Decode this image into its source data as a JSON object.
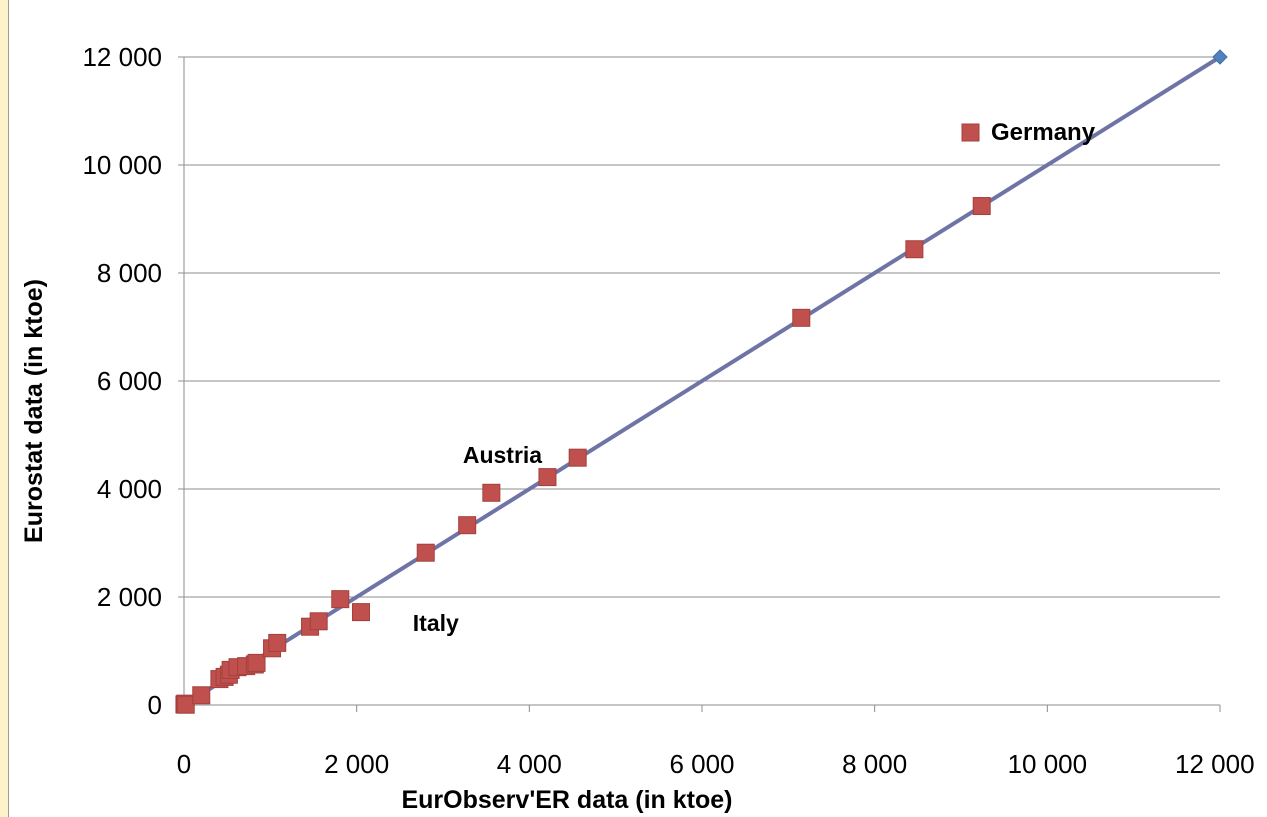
{
  "chart_data": {
    "type": "scatter",
    "title": "",
    "xlabel": "EurObserv'ER data (in ktoe)",
    "ylabel": "Eurostat data (in ktoe)",
    "xlim": [
      0,
      12000
    ],
    "ylim": [
      0,
      12000
    ],
    "x_ticks": [
      0,
      2000,
      4000,
      6000,
      8000,
      10000,
      12000
    ],
    "y_ticks": [
      0,
      2000,
      4000,
      6000,
      8000,
      10000,
      12000
    ],
    "x_tick_labels": [
      "0",
      "2 000",
      "4 000",
      "6 000",
      "8 000",
      "10 000",
      "12 000"
    ],
    "y_tick_labels": [
      "0",
      "2 000",
      "4 000",
      "6 000",
      "8 000",
      "10 000",
      "12 000"
    ],
    "grid": "horizontal",
    "legend_position": "top-right",
    "series": [
      {
        "name": "Germany",
        "marker": "square",
        "color": "#c0504d",
        "points": [
          [
            5,
            10
          ],
          [
            15,
            25
          ],
          [
            20,
            5
          ],
          [
            200,
            180
          ],
          [
            410,
            480
          ],
          [
            470,
            520
          ],
          [
            520,
            560
          ],
          [
            540,
            650
          ],
          [
            620,
            700
          ],
          [
            720,
            720
          ],
          [
            820,
            750
          ],
          [
            840,
            780
          ],
          [
            1020,
            1050
          ],
          [
            1080,
            1150
          ],
          [
            1460,
            1450
          ],
          [
            1560,
            1550
          ],
          [
            1810,
            1960
          ],
          [
            2050,
            1720
          ],
          [
            2800,
            2820
          ],
          [
            3280,
            3330
          ],
          [
            3560,
            3930
          ],
          [
            4210,
            4220
          ],
          [
            4560,
            4580
          ],
          [
            7150,
            7170
          ],
          [
            8460,
            8440
          ],
          [
            9240,
            9240
          ]
        ]
      },
      {
        "line": true,
        "marker": "diamond",
        "color": "#4f81bd",
        "line_color": "#6e74a6",
        "points": [
          [
            0,
            0
          ],
          [
            12000,
            12000
          ]
        ]
      }
    ],
    "annotations": [
      {
        "text": "Austria",
        "x": 3230,
        "y": 4480
      },
      {
        "text": "Italy",
        "x": 2650,
        "y": 1370
      }
    ]
  }
}
